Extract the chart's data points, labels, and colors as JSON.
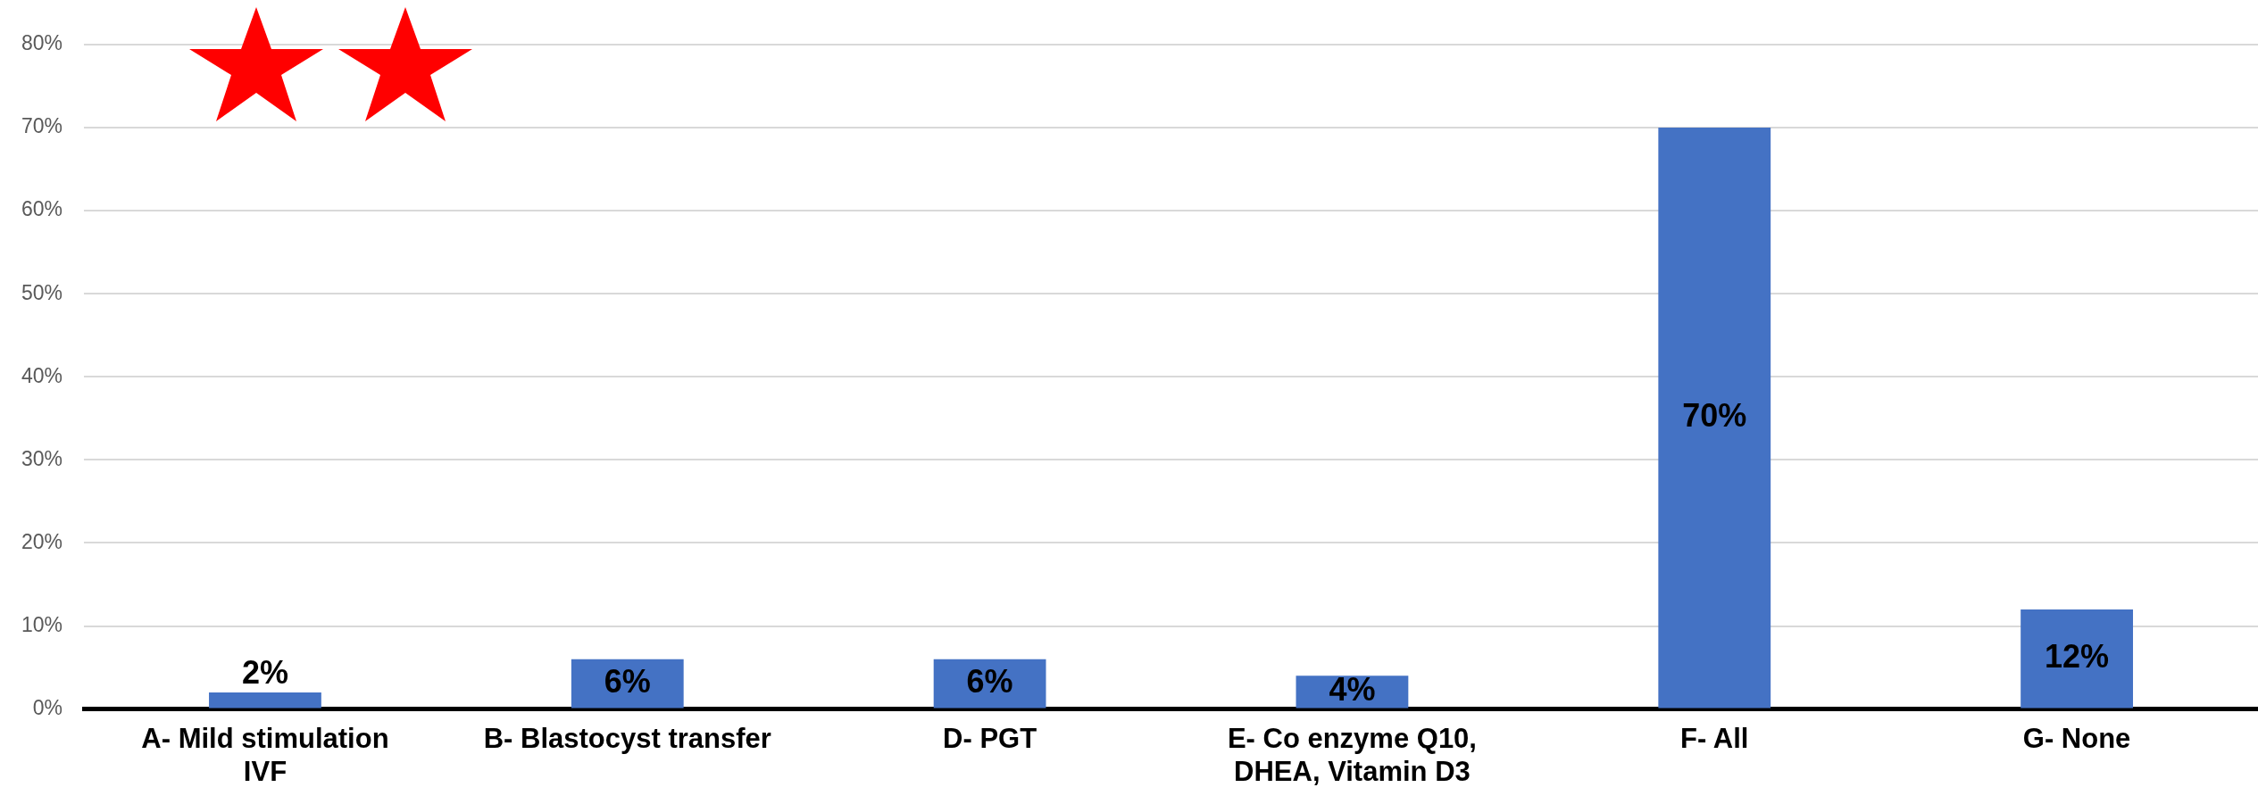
{
  "chart_data": {
    "type": "bar",
    "categories": [
      "A- Mild stimulation IVF",
      "B- Blastocyst transfer",
      "D- PGT",
      "E- Co enzyme Q10, DHEA, Vitamin D3",
      "F- All",
      "G- None"
    ],
    "values": [
      2,
      6,
      6,
      4,
      70,
      12
    ],
    "value_labels": [
      "2%",
      "6%",
      "6%",
      "4%",
      "70%",
      "12%"
    ],
    "color": "#4472c4",
    "ylim": [
      0,
      80
    ],
    "yticks": [
      {
        "value": 0,
        "label": "0%"
      },
      {
        "value": 10,
        "label": "10%"
      },
      {
        "value": 20,
        "label": "20%"
      },
      {
        "value": 30,
        "label": "30%"
      },
      {
        "value": 40,
        "label": "40%"
      },
      {
        "value": 50,
        "label": "50%"
      },
      {
        "value": 60,
        "label": "60%"
      },
      {
        "value": 70,
        "label": "70%"
      },
      {
        "value": 80,
        "label": "80%"
      }
    ],
    "grid": "y"
  }
}
